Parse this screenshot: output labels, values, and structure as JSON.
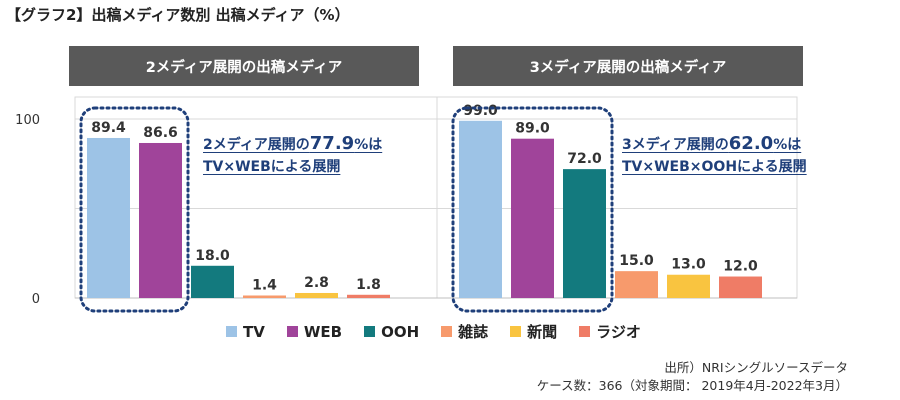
{
  "title": "【グラフ2】出稿メディア数別 出稿メディア（%）",
  "panels": [
    {
      "header": "2メディア展開の出稿メディア",
      "note_pre": "2メディア展開の",
      "note_pct": "77.9",
      "note_post": "%は",
      "note_line2": "TV×WEBによる展開"
    },
    {
      "header": "3メディア展開の出稿メディア",
      "note_pre": "3メディア展開の",
      "note_pct": "62.0",
      "note_post": "%は",
      "note_line2": "TV×WEB×OOHによる展開"
    }
  ],
  "legend": [
    {
      "label": "TV",
      "color": "#9dc3e6"
    },
    {
      "label": "WEB",
      "color": "#a0449a"
    },
    {
      "label": "OOH",
      "color": "#137a7e"
    },
    {
      "label": "雑誌",
      "color": "#f79a6c"
    },
    {
      "label": "新聞",
      "color": "#f9c440"
    },
    {
      "label": "ラジオ",
      "color": "#ef7c66"
    }
  ],
  "source_line1": "出所）NRIシングルソースデータ",
  "source_line2": "ケース数：366（対象期間： 2019年4月-2022年3月）",
  "chart_data": {
    "type": "bar",
    "ylim": [
      0,
      100
    ],
    "ytick_labels": [
      "0",
      "100"
    ],
    "grid": true,
    "legend_position": "bottom",
    "categories": [
      "TV",
      "WEB",
      "OOH",
      "雑誌",
      "新聞",
      "ラジオ"
    ],
    "groups": [
      {
        "name": "2メディア展開の出稿メディア",
        "values": [
          89.4,
          86.6,
          18.0,
          1.4,
          2.8,
          1.8
        ],
        "highlighted": [
          "TV",
          "WEB"
        ]
      },
      {
        "name": "3メディア展開の出稿メディア",
        "values": [
          99.0,
          89.0,
          72.0,
          15.0,
          13.0,
          12.0
        ],
        "highlighted": [
          "TV",
          "WEB",
          "OOH"
        ]
      }
    ]
  }
}
